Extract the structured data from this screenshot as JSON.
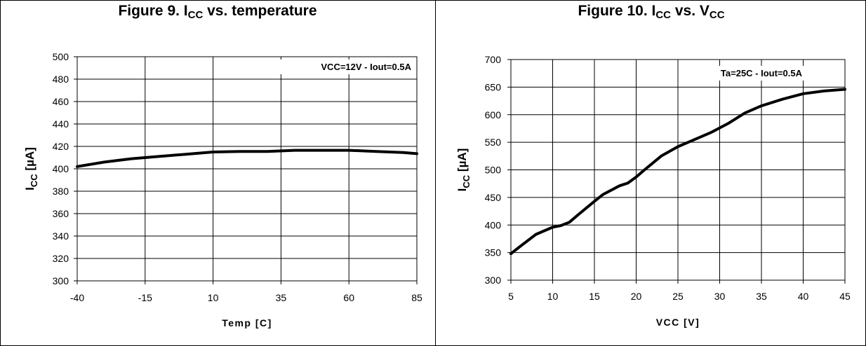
{
  "figures": [
    {
      "title_main": "Figure 9. I",
      "title_sub": "CC",
      "title_rest": " vs. temperature"
    },
    {
      "title_main": "Figure 10. I",
      "title_sub": "CC",
      "title_rest": " vs. V",
      "title_sub2": "CC"
    }
  ],
  "chart_data": [
    {
      "type": "line",
      "title": "Figure 9. ICC vs. temperature",
      "xlabel": "Temp [C]",
      "ylabel_main": "I",
      "ylabel_sub": "CC",
      "ylabel_rest": " [µA]",
      "annotation": "VCC=12V - Iout=0.5A",
      "xlim": [
        -40,
        85
      ],
      "ylim": [
        300,
        500
      ],
      "x_ticks": [
        -40,
        -15,
        10,
        35,
        60,
        85
      ],
      "x_tick_labels": [
        "-40",
        "-15",
        "10",
        "35",
        "60",
        "85"
      ],
      "y_ticks": [
        300,
        320,
        340,
        360,
        380,
        400,
        420,
        440,
        460,
        480,
        500
      ],
      "grid": true,
      "series": [
        {
          "x": [
            -40,
            -30,
            -20,
            -10,
            0,
            10,
            20,
            30,
            40,
            50,
            60,
            70,
            80,
            85
          ],
          "y": [
            402,
            406,
            409,
            411,
            413,
            415,
            415.5,
            415.5,
            416.5,
            416.5,
            416.5,
            415.5,
            414.5,
            413.5
          ]
        }
      ]
    },
    {
      "type": "line",
      "title": "Figure 10. ICC vs. VCC",
      "xlabel": "VCC [V]",
      "ylabel_main": "I",
      "ylabel_sub": "CC",
      "ylabel_rest": " [µA]",
      "annotation": "Ta=25C - Iout=0.5A",
      "xlim": [
        5,
        45
      ],
      "ylim": [
        300,
        700
      ],
      "x_ticks": [
        5,
        10,
        15,
        20,
        25,
        30,
        35,
        40,
        45
      ],
      "x_tick_labels": [
        "5",
        "10",
        "15",
        "20",
        "25",
        "30",
        "35",
        "40",
        "45"
      ],
      "y_ticks": [
        300,
        350,
        400,
        450,
        500,
        550,
        600,
        650,
        700
      ],
      "grid": true,
      "series": [
        {
          "x": [
            5,
            6,
            8,
            10,
            11,
            12,
            13,
            15,
            16,
            18,
            19,
            20,
            21,
            23,
            25,
            27,
            29,
            31,
            33,
            35,
            37.5,
            40,
            42.5,
            45
          ],
          "y": [
            348,
            360,
            383,
            396,
            399,
            405,
            418,
            443,
            455,
            471,
            476,
            487,
            500,
            525,
            542,
            555,
            568,
            584,
            603,
            616,
            628,
            638,
            643,
            646
          ]
        }
      ]
    }
  ]
}
